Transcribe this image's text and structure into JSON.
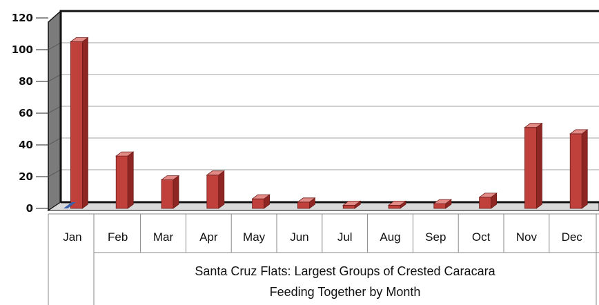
{
  "chart_data": {
    "type": "bar",
    "categories": [
      "Jan",
      "Feb",
      "Mar",
      "Apr",
      "May",
      "Jun",
      "Jul",
      "Aug",
      "Sep",
      "Oct",
      "Nov",
      "Dec"
    ],
    "series": [
      {
        "values": [
          105,
          33,
          18,
          21,
          6,
          4,
          2,
          2,
          3,
          7,
          51,
          47
        ],
        "color": "#c0403c"
      }
    ],
    "ylim": [
      0,
      120
    ],
    "yticks": [
      0,
      20,
      40,
      60,
      80,
      100,
      120
    ],
    "title_lines": [
      "Santa Cruz Flats: Largest Groups of  Crested Caracara",
      "Feeding Together by Month"
    ],
    "grid": true,
    "legend": "none",
    "colors": {
      "bar": "#c0403c",
      "bar_side": "#8e2623",
      "bar_top": "#e28a86",
      "wall": "#7b7b7b",
      "grid": "#b5b5b5"
    }
  }
}
